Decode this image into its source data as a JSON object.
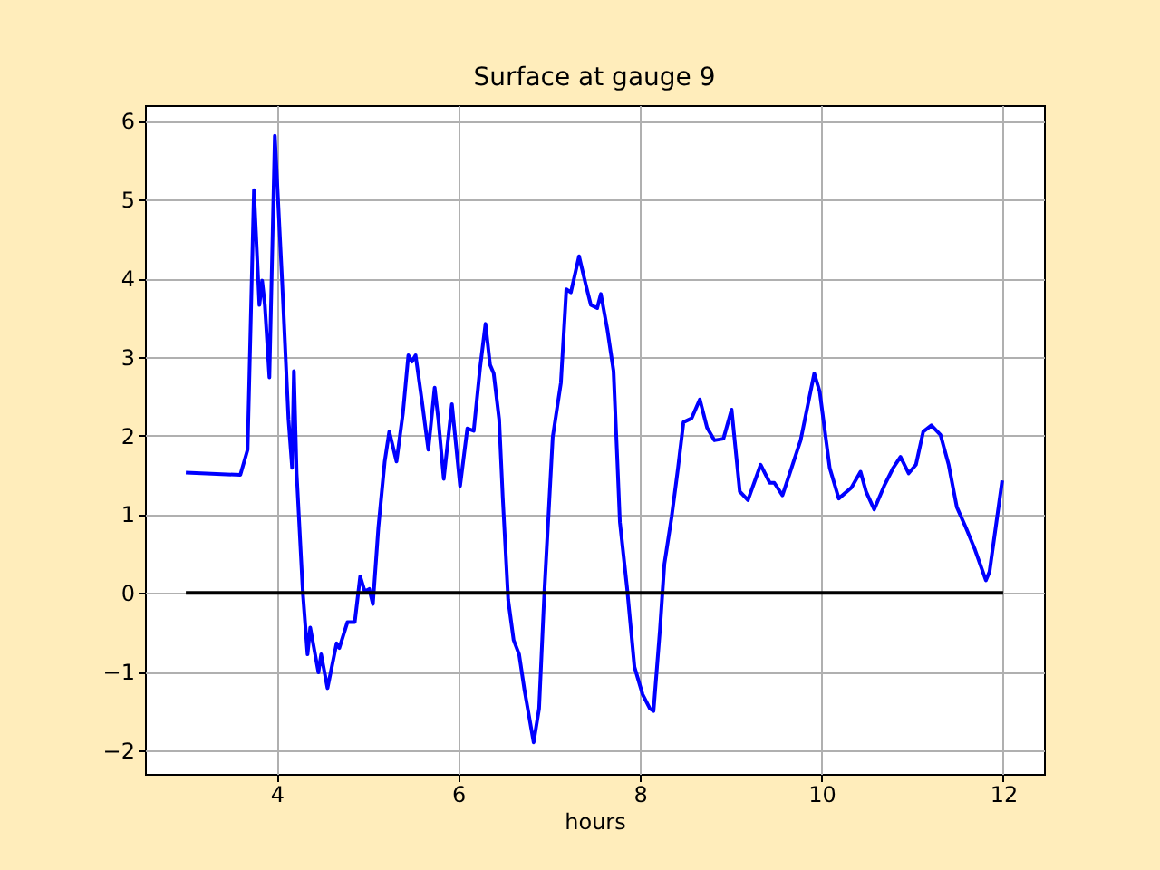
{
  "chart_data": {
    "type": "line",
    "title": "Surface at gauge 9",
    "xlabel": "hours",
    "series": [
      {
        "color": "#0000ff",
        "x": [
          3.0,
          3.6,
          3.68,
          3.75,
          3.81,
          3.84,
          3.87,
          3.92,
          3.98,
          4.06,
          4.13,
          4.17,
          4.19,
          4.22,
          4.29,
          4.34,
          4.37,
          4.46,
          4.49,
          4.56,
          4.66,
          4.69,
          4.78,
          4.86,
          4.92,
          4.97,
          5.02,
          5.06,
          5.12,
          5.19,
          5.24,
          5.32,
          5.39,
          5.45,
          5.49,
          5.53,
          5.6,
          5.67,
          5.74,
          5.78,
          5.84,
          5.93,
          6.02,
          6.1,
          6.17,
          6.24,
          6.3,
          6.35,
          6.39,
          6.45,
          6.49,
          6.55,
          6.61,
          6.67,
          6.73,
          6.83,
          6.89,
          6.95,
          7.04,
          7.13,
          7.19,
          7.24,
          7.33,
          7.41,
          7.46,
          7.53,
          7.57,
          7.64,
          7.71,
          7.78,
          7.86,
          7.94,
          8.03,
          8.11,
          8.15,
          8.22,
          8.27,
          8.35,
          8.42,
          8.48,
          8.57,
          8.66,
          8.74,
          8.82,
          8.92,
          9.01,
          9.1,
          9.19,
          9.33,
          9.43,
          9.48,
          9.57,
          9.67,
          9.77,
          9.92,
          9.98,
          10.09,
          10.19,
          10.33,
          10.43,
          10.49,
          10.58,
          10.69,
          10.79,
          10.87,
          10.96,
          11.04,
          11.12,
          11.21,
          11.31,
          11.4,
          11.49,
          11.59,
          11.69,
          11.81,
          11.85,
          11.99
        ],
        "values": [
          1.53,
          1.5,
          1.82,
          5.12,
          3.66,
          3.97,
          3.66,
          2.74,
          5.81,
          3.97,
          2.21,
          1.59,
          2.82,
          1.52,
          -0.02,
          -0.78,
          -0.44,
          -1.01,
          -0.78,
          -1.21,
          -0.64,
          -0.7,
          -0.37,
          -0.37,
          0.21,
          0.02,
          0.05,
          -0.14,
          0.83,
          1.67,
          2.05,
          1.67,
          2.28,
          3.02,
          2.94,
          3.02,
          2.44,
          1.82,
          2.61,
          2.21,
          1.45,
          2.4,
          1.36,
          2.09,
          2.06,
          2.86,
          3.42,
          2.9,
          2.79,
          2.21,
          1.21,
          -0.09,
          -0.6,
          -0.78,
          -1.24,
          -1.9,
          -1.47,
          0.05,
          1.98,
          2.67,
          3.86,
          3.82,
          4.28,
          3.89,
          3.66,
          3.62,
          3.8,
          3.36,
          2.82,
          0.9,
          0.05,
          -0.94,
          -1.29,
          -1.47,
          -1.5,
          -0.48,
          0.37,
          0.97,
          1.59,
          2.17,
          2.22,
          2.46,
          2.1,
          1.94,
          1.96,
          2.33,
          1.29,
          1.18,
          1.63,
          1.4,
          1.4,
          1.24,
          1.59,
          1.94,
          2.79,
          2.56,
          1.59,
          1.2,
          1.34,
          1.54,
          1.29,
          1.06,
          1.36,
          1.59,
          1.73,
          1.52,
          1.63,
          2.05,
          2.13,
          2.01,
          1.63,
          1.09,
          0.83,
          0.55,
          0.16,
          0.27,
          1.43
        ]
      },
      {
        "color": "#000000",
        "x": [
          3,
          12
        ],
        "values": [
          0,
          0
        ]
      }
    ],
    "xlim": [
      2.55,
      12.45
    ],
    "xticks": [
      4,
      6,
      8,
      10,
      12
    ],
    "ylim": [
      -2.3,
      6.2
    ],
    "yticks": [
      -2,
      -1,
      0,
      1,
      2,
      3,
      4,
      5,
      6
    ],
    "grid": true,
    "legend": false,
    "line_style": "solid"
  }
}
